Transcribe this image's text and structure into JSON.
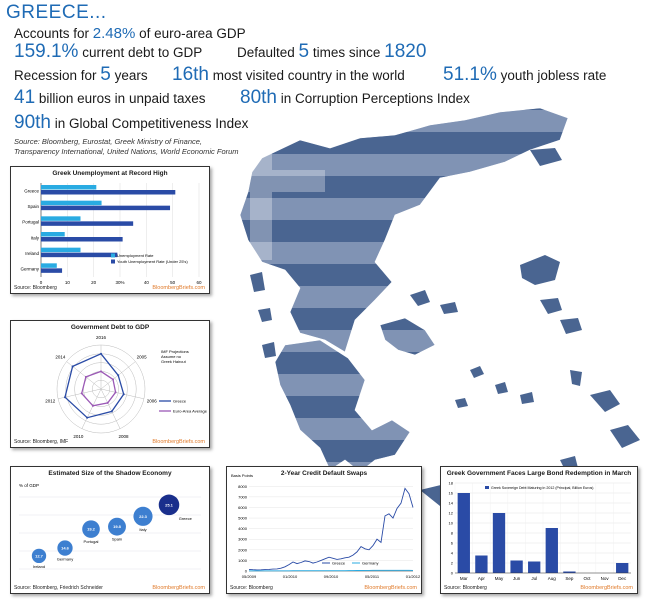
{
  "header": {
    "title": "GREECE...",
    "facts": [
      {
        "pre": "Accounts for ",
        "value": "2.48%",
        "post": " of euro-area GDP"
      },
      {
        "pre": "",
        "value": "159.1%",
        "post": " current debt to GDP"
      },
      {
        "pre": "Defaulted ",
        "value": "5",
        "post": " times since ",
        "value2": "1820"
      },
      {
        "pre": "Recession for ",
        "value": "5",
        "post": " years"
      },
      {
        "pre": "",
        "value": "16th",
        "post": " most visited country in the world"
      },
      {
        "pre": "",
        "value": "51.1%",
        "post": " youth jobless rate"
      },
      {
        "pre": "",
        "value": "41",
        "post": " billion euros in unpaid taxes"
      },
      {
        "pre": "",
        "value": "80th",
        "post": " in Corruption Perceptions Index"
      },
      {
        "pre": "",
        "value": "90th",
        "post": " in Global Competitiveness Index"
      }
    ],
    "source_line1": "Source: Bloomberg, Eurostat, Greek Ministry of Finance,",
    "source_line2": "Transparency International, United Nations, World Economic Forum"
  },
  "colors": {
    "accent": "#1f6bb5",
    "map": "#4a6591",
    "map_light": "#8093b4",
    "brand": "#e07a2a"
  },
  "chart_data": [
    {
      "type": "bar",
      "orientation": "horizontal",
      "title": "Greek Unemployment at Record High",
      "categories": [
        "Greece",
        "Spain",
        "Portugal",
        "Italy",
        "Ireland",
        "Germany"
      ],
      "series": [
        {
          "name": "Unemployment Rate",
          "values": [
            21,
            23,
            15,
            9,
            15,
            6
          ],
          "color": "#29abe2"
        },
        {
          "name": "Youth Unemployment Rate (Under 25's)",
          "values": [
            51,
            49,
            35,
            31,
            29,
            8
          ],
          "color": "#2a4ba6"
        }
      ],
      "x_ticks": [
        "0",
        "10",
        "20",
        "30%",
        "40",
        "50",
        "60"
      ],
      "xlim": [
        0,
        60
      ],
      "source": "Source: Bloomberg",
      "brand": "BloombergBriefs.com"
    },
    {
      "type": "radar",
      "title": "Government Debt to GDP",
      "axis_labels": [
        "2016",
        "2005",
        "2006",
        "2008",
        "2010",
        "2012",
        "2014"
      ],
      "annotation": "IMF Projections Assume no Greek Haircut",
      "series": [
        {
          "name": "Greece",
          "color": "#2a4ba6",
          "values": [
            160,
            100,
            106,
            113,
            145,
            168,
            165
          ]
        },
        {
          "name": "Euro-Area Average",
          "color": "#9b59b6",
          "values": [
            80,
            70,
            68,
            70,
            85,
            90,
            88
          ]
        }
      ],
      "rings": [
        40,
        80,
        120,
        160,
        200
      ],
      "source": "Source: Bloomberg, IMF",
      "brand": "BloombergBriefs.com"
    },
    {
      "type": "bubble",
      "title": "Estimated Size of the Shadow Economy",
      "ylabel": "% of GDP",
      "points": [
        {
          "label": "Ireland",
          "value": 12.7
        },
        {
          "label": "Germany",
          "value": 14.6
        },
        {
          "label": "Portugal",
          "value": 19.2
        },
        {
          "label": "Spain",
          "value": 19.8
        },
        {
          "label": "Italy",
          "value": 22.3
        },
        {
          "label": "Greece",
          "value": 25.1
        }
      ],
      "source": "Source: Bloomberg, Friedrich Schneider",
      "brand": "BloombergBriefs.com"
    },
    {
      "type": "line",
      "title": "2-Year Credit Default Swaps",
      "ylabel": "Basis Points",
      "x_ticks": [
        "05/2009",
        "01/2010",
        "09/2010",
        "05/2011",
        "01/2012"
      ],
      "y_ticks": [
        0,
        1000,
        2000,
        3000,
        4000,
        5000,
        6000,
        7000,
        8000
      ],
      "ylim": [
        0,
        8500
      ],
      "series": [
        {
          "name": "Greece",
          "color": "#2a4ba6",
          "values": [
            150,
            120,
            100,
            110,
            130,
            150,
            180,
            200,
            260,
            400,
            600,
            850,
            700,
            800,
            950,
            900,
            750,
            850,
            1000,
            1150,
            1300,
            1200,
            1100,
            1150,
            1250,
            1300,
            1500,
            1800,
            2300,
            2100,
            2000,
            2400,
            3000,
            2700,
            5200,
            5400,
            5000,
            5900,
            6400,
            7800,
            7300,
            6000
          ]
        },
        {
          "name": "Germany",
          "color": "#29abe2",
          "values": [
            20,
            20,
            18,
            18,
            19,
            20,
            20,
            21,
            22,
            22,
            23,
            24,
            24,
            25,
            25,
            26,
            26,
            27,
            27,
            28,
            28,
            29,
            30,
            31,
            33,
            36,
            40,
            45,
            50,
            55,
            60,
            62,
            65,
            65,
            68,
            70,
            70,
            68,
            66,
            64,
            62,
            60
          ]
        }
      ],
      "source": "Source: Bloomberg",
      "brand": "BloombergBriefs.com"
    },
    {
      "type": "bar",
      "title": "Greek Government Faces Large Bond Redemption in March",
      "legend": "Greek Sovereign Debt Maturing in 2012 (Principal, Billion Euros)",
      "categories": [
        "Mar",
        "Apr",
        "May",
        "Jun",
        "Jul",
        "Aug",
        "Sep",
        "Oct",
        "Nov",
        "Dec"
      ],
      "values": [
        16,
        3.5,
        12,
        2.5,
        2.3,
        9,
        0.3,
        0,
        0,
        2
      ],
      "y_ticks": [
        0,
        2,
        4,
        6,
        8,
        10,
        12,
        14,
        16,
        18
      ],
      "ylim": [
        0,
        18
      ],
      "source": "Source: Bloomberg",
      "brand": "BloombergBriefs.com"
    }
  ]
}
